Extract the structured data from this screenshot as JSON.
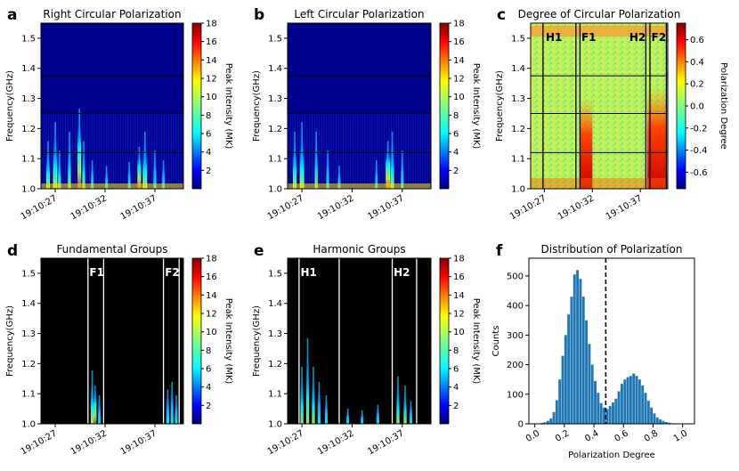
{
  "chart_data": [
    {
      "panel": "a",
      "type": "heatmap",
      "title": "Right Circular Polarization",
      "ylabel": "Frequency(GHz)",
      "ylim": [
        1.0,
        1.55
      ],
      "yticks": [
        "1.0",
        "1.1",
        "1.2",
        "1.3",
        "1.4",
        "1.5"
      ],
      "xticks": [
        "19:10:27",
        "19:10:32",
        "19:10:37"
      ],
      "hlines": [
        1.12,
        1.25,
        1.375
      ],
      "colorbar": {
        "label": "Peak Intensity (MK)",
        "ticks": [
          "2",
          "4",
          "6",
          "8",
          "10",
          "12",
          "14",
          "16",
          "18"
        ],
        "range": [
          0,
          18
        ]
      },
      "bursts": [
        {
          "t": 0.05,
          "w": 0.025,
          "h": 0.25,
          "v": 0.7
        },
        {
          "t": 0.1,
          "w": 0.03,
          "h": 0.35,
          "v": 0.75
        },
        {
          "t": 0.13,
          "w": 0.02,
          "h": 0.2,
          "v": 0.6
        },
        {
          "t": 0.2,
          "w": 0.02,
          "h": 0.3,
          "v": 0.65
        },
        {
          "t": 0.27,
          "w": 0.025,
          "h": 0.42,
          "v": 0.9
        },
        {
          "t": 0.3,
          "w": 0.02,
          "h": 0.25,
          "v": 0.6
        },
        {
          "t": 0.36,
          "w": 0.015,
          "h": 0.15,
          "v": 0.45
        },
        {
          "t": 0.46,
          "w": 0.015,
          "h": 0.12,
          "v": 0.4
        },
        {
          "t": 0.62,
          "w": 0.015,
          "h": 0.14,
          "v": 0.45
        },
        {
          "t": 0.69,
          "w": 0.025,
          "h": 0.22,
          "v": 0.95
        },
        {
          "t": 0.73,
          "w": 0.03,
          "h": 0.3,
          "v": 0.7
        },
        {
          "t": 0.8,
          "w": 0.02,
          "h": 0.2,
          "v": 0.55
        },
        {
          "t": 0.86,
          "w": 0.015,
          "h": 0.15,
          "v": 0.45
        }
      ]
    },
    {
      "panel": "b",
      "type": "heatmap",
      "title": "Left Circular Polarization",
      "ylabel": "Frequency(GHz)",
      "ylim": [
        1.0,
        1.55
      ],
      "yticks": [
        "1.0",
        "1.1",
        "1.2",
        "1.3",
        "1.4",
        "1.5"
      ],
      "xticks": [
        "19:10:27",
        "19:10:32",
        "19:10:37"
      ],
      "hlines": [
        1.12,
        1.25,
        1.375
      ],
      "colorbar": {
        "label": "Peak Intensity (MK)",
        "ticks": [
          "2",
          "4",
          "6",
          "8",
          "10",
          "12",
          "14",
          "16",
          "18"
        ],
        "range": [
          0,
          18
        ]
      },
      "bursts": [
        {
          "t": 0.05,
          "w": 0.025,
          "h": 0.3,
          "v": 0.75
        },
        {
          "t": 0.1,
          "w": 0.03,
          "h": 0.35,
          "v": 0.7
        },
        {
          "t": 0.2,
          "w": 0.02,
          "h": 0.3,
          "v": 0.6
        },
        {
          "t": 0.28,
          "w": 0.02,
          "h": 0.2,
          "v": 0.55
        },
        {
          "t": 0.36,
          "w": 0.015,
          "h": 0.12,
          "v": 0.4
        },
        {
          "t": 0.62,
          "w": 0.015,
          "h": 0.15,
          "v": 0.45
        },
        {
          "t": 0.7,
          "w": 0.03,
          "h": 0.25,
          "v": 0.95
        },
        {
          "t": 0.73,
          "w": 0.025,
          "h": 0.3,
          "v": 0.75
        },
        {
          "t": 0.8,
          "w": 0.02,
          "h": 0.2,
          "v": 0.5
        }
      ]
    },
    {
      "panel": "c",
      "type": "heatmap",
      "title": "Degree of Circular Polarization",
      "ylabel": "Frequency(GHz)",
      "ylim": [
        1.0,
        1.55
      ],
      "yticks": [
        "1.0",
        "1.1",
        "1.2",
        "1.3",
        "1.4",
        "1.5"
      ],
      "xticks": [
        "19:10:27",
        "19:10:32",
        "19:10:37"
      ],
      "hlines": [
        1.12,
        1.25,
        1.375
      ],
      "vlines": [
        0.09,
        0.33,
        0.36,
        0.84,
        0.87,
        0.99
      ],
      "group_labels": [
        {
          "label": "H1",
          "t": 0.11
        },
        {
          "label": "F1",
          "t": 0.37
        },
        {
          "label": "H2",
          "t": 0.72
        },
        {
          "label": "F2",
          "t": 0.88
        }
      ],
      "colorbar": {
        "label": "Polarization Degree",
        "ticks": [
          "-0.6",
          "-0.4",
          "-0.2",
          "0.0",
          "0.2",
          "0.4",
          "0.6"
        ],
        "range": [
          -0.75,
          0.75
        ]
      }
    },
    {
      "panel": "d",
      "type": "heatmap",
      "title": "Fundamental Groups",
      "ylabel": "Frequency(GHz)",
      "ylim": [
        1.0,
        1.55
      ],
      "yticks": [
        "1.0",
        "1.1",
        "1.2",
        "1.3",
        "1.4",
        "1.5"
      ],
      "xticks": [
        "19:10:27",
        "19:10:32",
        "19:10:37"
      ],
      "vlines": [
        0.33,
        0.44,
        0.86,
        0.97
      ],
      "group_labels": [
        {
          "label": "F1",
          "t": 0.34
        },
        {
          "label": "F2",
          "t": 0.87
        }
      ],
      "colorbar": {
        "label": "Peak Intensity (MK)",
        "ticks": [
          "2",
          "4",
          "6",
          "8",
          "10",
          "12",
          "14",
          "16",
          "18"
        ],
        "range": [
          0,
          18
        ]
      },
      "bursts": [
        {
          "t": 0.36,
          "w": 0.02,
          "h": 0.28,
          "v": 0.75
        },
        {
          "t": 0.38,
          "w": 0.02,
          "h": 0.2,
          "v": 0.95
        },
        {
          "t": 0.41,
          "w": 0.015,
          "h": 0.15,
          "v": 0.5
        },
        {
          "t": 0.89,
          "w": 0.02,
          "h": 0.18,
          "v": 0.45
        },
        {
          "t": 0.92,
          "w": 0.02,
          "h": 0.22,
          "v": 0.5
        },
        {
          "t": 0.95,
          "w": 0.015,
          "h": 0.15,
          "v": 0.4
        }
      ]
    },
    {
      "panel": "e",
      "type": "heatmap",
      "title": "Harmonic Groups",
      "ylabel": "Frequency(GHz)",
      "ylim": [
        1.0,
        1.55
      ],
      "yticks": [
        "1.0",
        "1.1",
        "1.2",
        "1.3",
        "1.4",
        "1.5"
      ],
      "xticks": [
        "19:10:27",
        "19:10:32",
        "19:10:37"
      ],
      "vlines": [
        0.08,
        0.36,
        0.73,
        0.9
      ],
      "group_labels": [
        {
          "label": "H1",
          "t": 0.09
        },
        {
          "label": "H2",
          "t": 0.74
        }
      ],
      "colorbar": {
        "label": "Peak Intensity (MK)",
        "ticks": [
          "2",
          "4",
          "6",
          "8",
          "10",
          "12",
          "14",
          "16",
          "18"
        ],
        "range": [
          0,
          18
        ]
      },
      "bursts": [
        {
          "t": 0.1,
          "w": 0.02,
          "h": 0.3,
          "v": 0.75
        },
        {
          "t": 0.14,
          "w": 0.02,
          "h": 0.45,
          "v": 0.7
        },
        {
          "t": 0.18,
          "w": 0.02,
          "h": 0.3,
          "v": 0.6
        },
        {
          "t": 0.22,
          "w": 0.02,
          "h": 0.22,
          "v": 0.5
        },
        {
          "t": 0.27,
          "w": 0.015,
          "h": 0.15,
          "v": 0.4
        },
        {
          "t": 0.42,
          "w": 0.015,
          "h": 0.08,
          "v": 0.35
        },
        {
          "t": 0.52,
          "w": 0.015,
          "h": 0.07,
          "v": 0.35
        },
        {
          "t": 0.63,
          "w": 0.015,
          "h": 0.1,
          "v": 0.35
        },
        {
          "t": 0.77,
          "w": 0.02,
          "h": 0.25,
          "v": 0.85
        },
        {
          "t": 0.82,
          "w": 0.02,
          "h": 0.2,
          "v": 0.7
        },
        {
          "t": 0.86,
          "w": 0.015,
          "h": 0.12,
          "v": 0.45
        }
      ]
    },
    {
      "panel": "f",
      "type": "bar",
      "title": "Distribution of Polarization",
      "xlabel": "Polarization Degree",
      "ylabel": "Counts",
      "xlim": [
        -0.04,
        1.08
      ],
      "ylim": [
        0,
        560
      ],
      "xticks": [
        "0.0",
        "0.2",
        "0.4",
        "0.6",
        "0.8",
        "1.0"
      ],
      "yticks": [
        "0",
        "100",
        "200",
        "300",
        "400",
        "500"
      ],
      "bin_start": 0.04,
      "bin_width": 0.02,
      "values": [
        3,
        5,
        10,
        18,
        40,
        80,
        150,
        230,
        300,
        370,
        430,
        505,
        520,
        490,
        430,
        350,
        270,
        200,
        145,
        105,
        70,
        55,
        50,
        60,
        72,
        85,
        110,
        135,
        150,
        158,
        162,
        170,
        162,
        150,
        130,
        105,
        78,
        55,
        35,
        22,
        15,
        10,
        6,
        4,
        2,
        1
      ],
      "dashed_line_x": 0.48
    }
  ]
}
